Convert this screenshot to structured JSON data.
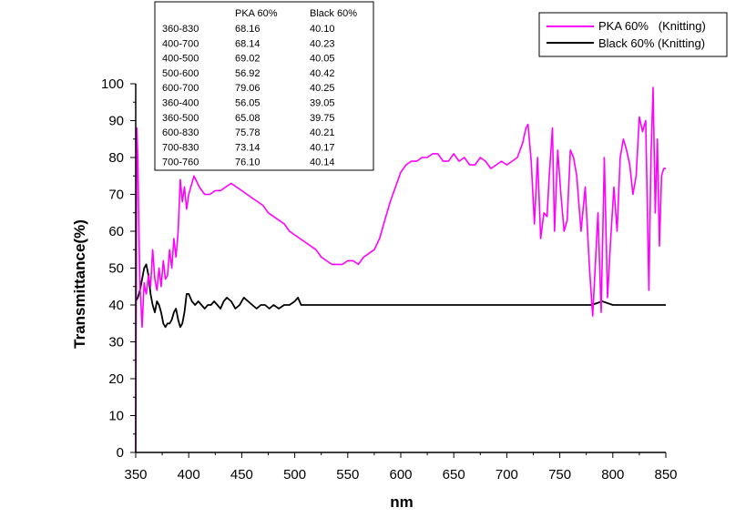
{
  "chart_data": {
    "type": "line",
    "title": "",
    "xlabel": "nm",
    "ylabel": "Transmittance(%)",
    "xlim": [
      350,
      850
    ],
    "ylim": [
      0,
      100
    ],
    "x_ticks": [
      350,
      400,
      450,
      500,
      550,
      600,
      650,
      700,
      750,
      800,
      850
    ],
    "y_ticks": [
      0,
      10,
      20,
      30,
      40,
      50,
      60,
      70,
      80,
      90,
      100
    ],
    "legend_position": "top-right",
    "series": [
      {
        "name": "PKA 60%   (Knitting)",
        "color": "#ff00ff",
        "x": [
          350,
          351,
          352,
          353,
          354,
          355,
          356,
          357,
          358,
          359,
          360,
          362,
          364,
          366,
          368,
          370,
          372,
          374,
          376,
          378,
          380,
          382,
          384,
          386,
          388,
          390,
          392,
          394,
          396,
          398,
          400,
          405,
          410,
          415,
          420,
          425,
          430,
          435,
          440,
          445,
          450,
          455,
          460,
          465,
          470,
          475,
          480,
          485,
          490,
          495,
          500,
          505,
          510,
          515,
          520,
          525,
          530,
          535,
          540,
          545,
          550,
          555,
          560,
          565,
          570,
          575,
          580,
          585,
          590,
          595,
          600,
          605,
          610,
          615,
          620,
          625,
          630,
          635,
          640,
          645,
          650,
          655,
          660,
          665,
          670,
          675,
          680,
          685,
          690,
          695,
          700,
          705,
          710,
          715,
          718,
          720,
          723,
          726,
          729,
          732,
          735,
          738,
          740,
          743,
          745,
          748,
          751,
          754,
          757,
          760,
          763,
          766,
          770,
          774,
          778,
          781,
          783,
          786,
          789,
          792,
          795,
          798,
          801,
          804,
          807,
          810,
          813,
          816,
          819,
          822,
          825,
          828,
          831,
          834,
          836,
          838,
          840,
          842,
          844,
          846,
          848,
          850
        ],
        "y": [
          0,
          88,
          80,
          60,
          45,
          40,
          34,
          40,
          46,
          44,
          43,
          48,
          45,
          55,
          47,
          44,
          50,
          45,
          52,
          47,
          48,
          55,
          50,
          58,
          53,
          60,
          74,
          68,
          72,
          66,
          70,
          75,
          72,
          70,
          70,
          71,
          71,
          72,
          73,
          72,
          71,
          70,
          69,
          68,
          67,
          65,
          64,
          63,
          62,
          60,
          59,
          58,
          57,
          56,
          55,
          53,
          52,
          51,
          51,
          51,
          52,
          52,
          51,
          53,
          54,
          55,
          58,
          63,
          68,
          72,
          76,
          78,
          79,
          79,
          80,
          80,
          81,
          81,
          79,
          79,
          81,
          79,
          80,
          78,
          78,
          80,
          79,
          77,
          78,
          79,
          78,
          79,
          80,
          84,
          88,
          89,
          79,
          62,
          80,
          58,
          65,
          64,
          75,
          88,
          60,
          82,
          70,
          60,
          63,
          82,
          80,
          75,
          60,
          72,
          50,
          37,
          48,
          65,
          38,
          80,
          42,
          58,
          72,
          60,
          80,
          85,
          82,
          78,
          70,
          75,
          91,
          87,
          90,
          44,
          80,
          99,
          65,
          85,
          56,
          75,
          77,
          77
        ]
      },
      {
        "name": "Black 60% (Knitting)",
        "color": "#000000",
        "x": [
          350,
          352,
          354,
          356,
          358,
          360,
          362,
          364,
          366,
          368,
          370,
          372,
          374,
          376,
          378,
          380,
          382,
          384,
          386,
          388,
          390,
          392,
          394,
          396,
          398,
          400,
          403,
          406,
          409,
          412,
          415,
          418,
          421,
          424,
          427,
          430,
          433,
          436,
          440,
          444,
          448,
          452,
          456,
          460,
          464,
          468,
          472,
          476,
          480,
          485,
          490,
          495,
          500,
          503,
          506,
          510,
          520,
          530,
          540,
          550,
          560,
          570,
          580,
          590,
          600,
          620,
          640,
          660,
          680,
          700,
          720,
          740,
          760,
          780,
          790,
          800,
          810,
          820,
          830,
          840,
          850
        ],
        "y": [
          41,
          42,
          44,
          47,
          50,
          51,
          48,
          43,
          40,
          38,
          41,
          40,
          38,
          35,
          34,
          35,
          35,
          36,
          38,
          39,
          36,
          34,
          35,
          38,
          43,
          43,
          41,
          40,
          41,
          40,
          39,
          40,
          40,
          41,
          40,
          39,
          41,
          42,
          41,
          39,
          40,
          42,
          41,
          40,
          39,
          40,
          40,
          39,
          40,
          39,
          40,
          40,
          41,
          42,
          40,
          40,
          40,
          40,
          40,
          40,
          40,
          40,
          40,
          40,
          40,
          40,
          40,
          40,
          40,
          40,
          40,
          40,
          40,
          40,
          41,
          40,
          40,
          40,
          40,
          40,
          40
        ]
      }
    ],
    "inset_table": {
      "headers": [
        "",
        "PKA 60%",
        "Black 60%"
      ],
      "rows": [
        [
          "360-830",
          "68.16",
          "40.10"
        ],
        [
          "400-700",
          "68.14",
          "40.23"
        ],
        [
          "400-500",
          "69.02",
          "40.05"
        ],
        [
          "500-600",
          "56.92",
          "40.42"
        ],
        [
          "600-700",
          "79.06",
          "40.25"
        ],
        [
          "360-400",
          "56.05",
          "39.05"
        ],
        [
          "360-500",
          "65.08",
          "39.75"
        ],
        [
          "600-830",
          "75.78",
          "40.21"
        ],
        [
          "700-830",
          "73.14",
          "40.17"
        ],
        [
          "700-760",
          "76.10",
          "40.14"
        ]
      ]
    }
  }
}
